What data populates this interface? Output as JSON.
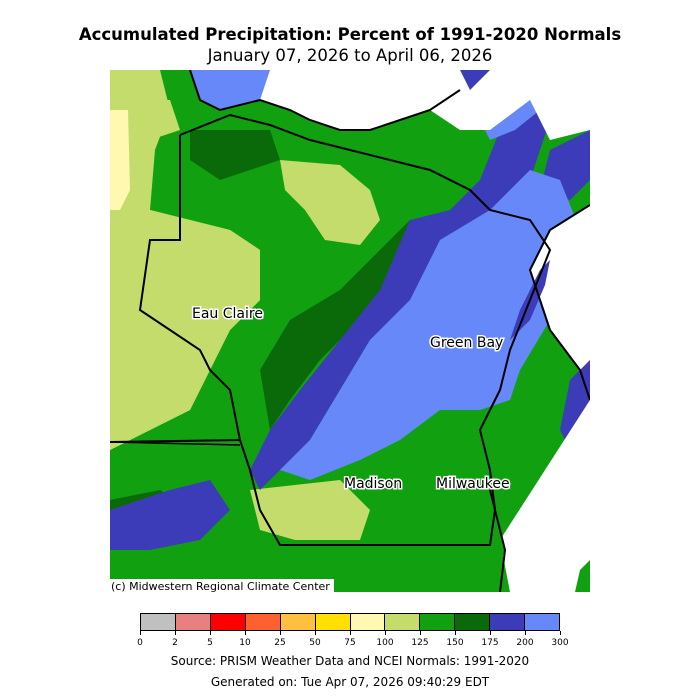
{
  "title": "Accumulated Precipitation: Percent of 1991-2020 Normals",
  "subtitle": "January 07, 2026 to April 06, 2026",
  "credit": "(c) Midwestern Regional Climate Center",
  "cities": [
    {
      "name": "Eau Claire"
    },
    {
      "name": "Green Bay"
    },
    {
      "name": "Madison"
    },
    {
      "name": "Milwaukee"
    }
  ],
  "legend": {
    "colors": [
      "#c0c0c0",
      "#e88080",
      "#ff0000",
      "#ff6030",
      "#ffc040",
      "#ffe000",
      "#fff8b0",
      "#c4dc6c",
      "#10a010",
      "#0a6a0a",
      "#3c3cb8",
      "#6688f8"
    ],
    "ticks": [
      "0",
      "2",
      "5",
      "10",
      "25",
      "50",
      "75",
      "100",
      "125",
      "150",
      "175",
      "200",
      "300"
    ]
  },
  "footer": {
    "source": "Source: PRISM Weather Data and NCEI Normals: 1991-2020",
    "generated": "Generated on: Tue Apr 07, 2026 09:40:29 EDT"
  }
}
